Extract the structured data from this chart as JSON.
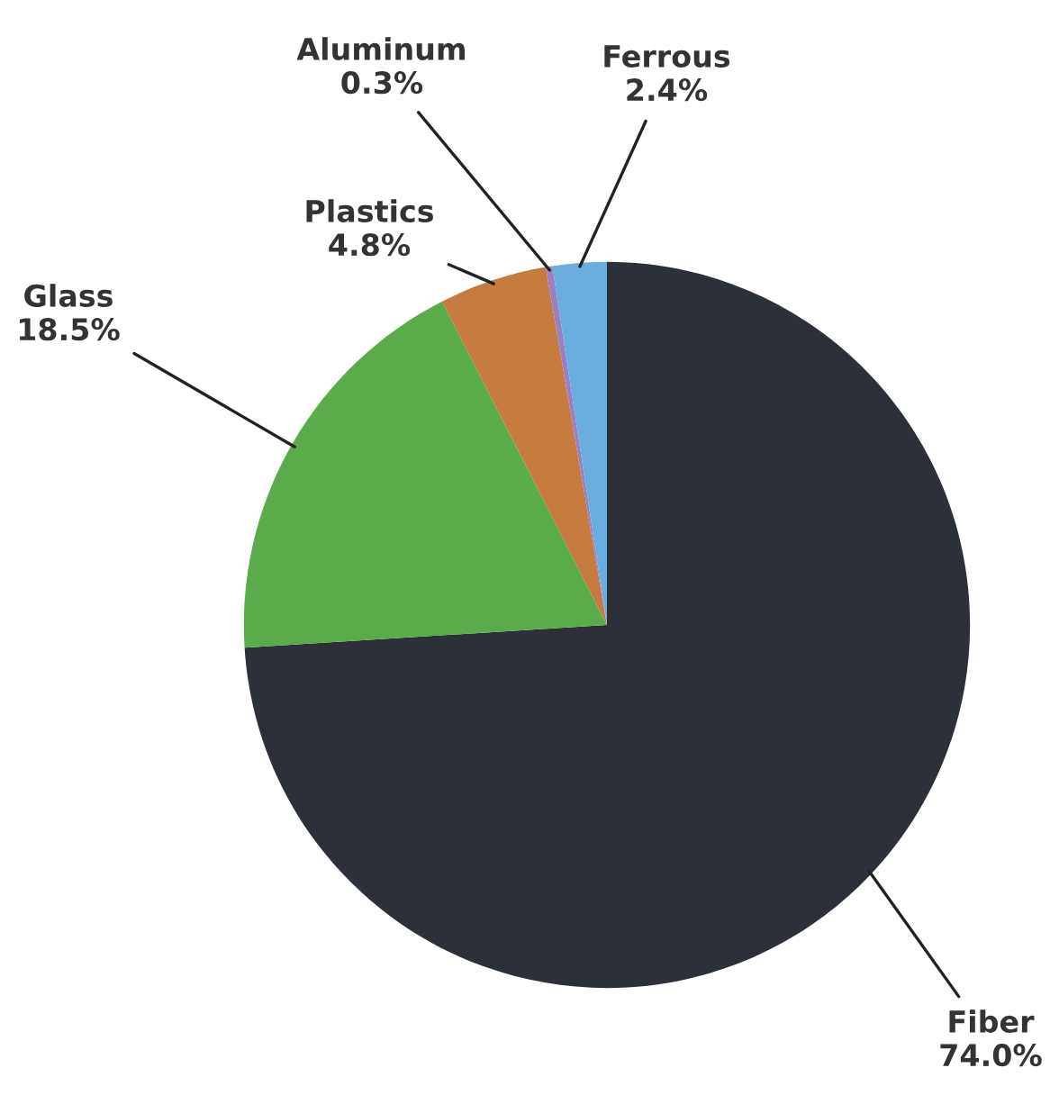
{
  "chart_data": {
    "type": "pie",
    "categories": [
      "Fiber",
      "Glass",
      "Plastics",
      "Aluminum",
      "Ferrous"
    ],
    "values": [
      74.0,
      18.5,
      4.8,
      0.3,
      2.4
    ],
    "value_labels": [
      "74.0%",
      "18.5%",
      "4.8%",
      "0.3%",
      "2.4%"
    ],
    "colors": [
      "#2b3039",
      "#5aab4a",
      "#c57a3e",
      "#9b7fc0",
      "#6aaee0"
    ],
    "legend": false
  }
}
